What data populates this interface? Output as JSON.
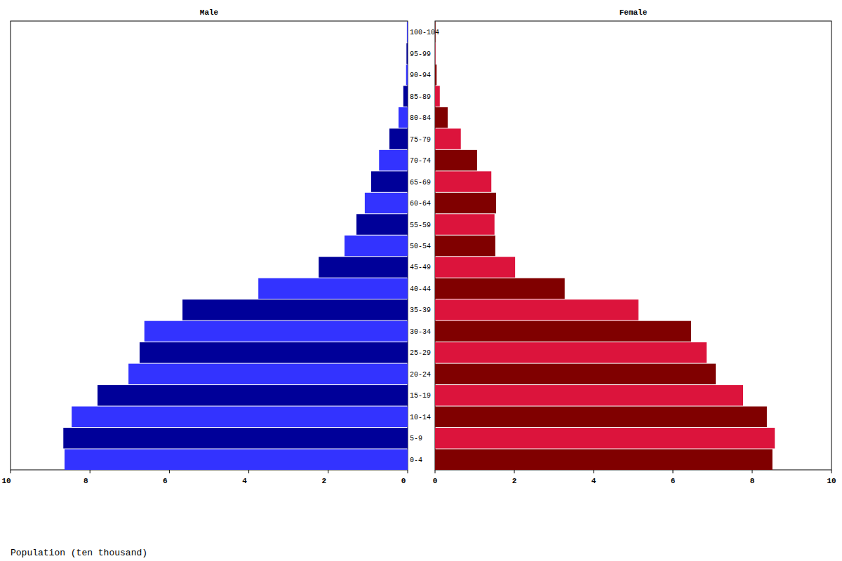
{
  "chart_data": {
    "type": "bar",
    "orientation": "horizontal",
    "x_label": "Population (ten thousand)",
    "categories": [
      "0-4",
      "5-9",
      "10-14",
      "15-19",
      "20-24",
      "25-29",
      "30-34",
      "35-39",
      "40-44",
      "45-49",
      "50-54",
      "55-59",
      "60-64",
      "65-69",
      "70-74",
      "75-79",
      "80-84",
      "85-89",
      "90-94",
      "95-99",
      "100-104"
    ],
    "series": [
      {
        "name": "Male",
        "colors": [
          "#3333ff",
          "#000099",
          "#3333ff",
          "#000099",
          "#3333ff",
          "#000099",
          "#3333ff",
          "#000099",
          "#3333ff",
          "#000099",
          "#3333ff",
          "#000099",
          "#3333ff",
          "#000099",
          "#3333ff",
          "#000099",
          "#3333ff",
          "#000099",
          "#3333ff",
          "#000099",
          "#3333ff"
        ],
        "values": [
          8.64,
          8.67,
          8.46,
          7.81,
          7.03,
          6.75,
          6.63,
          5.67,
          3.76,
          2.24,
          1.59,
          1.29,
          1.08,
          0.92,
          0.72,
          0.46,
          0.23,
          0.11,
          0.04,
          0.03,
          0.02
        ]
      },
      {
        "name": "Female",
        "colors": [
          "#800000",
          "#dc143c",
          "#800000",
          "#dc143c",
          "#800000",
          "#dc143c",
          "#800000",
          "#dc143c",
          "#800000",
          "#dc143c",
          "#800000",
          "#dc143c",
          "#800000",
          "#dc143c",
          "#800000",
          "#dc143c",
          "#800000",
          "#dc143c",
          "#800000",
          "#dc143c",
          "#800000"
        ],
        "values": [
          8.51,
          8.57,
          8.37,
          7.77,
          7.08,
          6.85,
          6.46,
          5.13,
          3.27,
          2.02,
          1.52,
          1.5,
          1.54,
          1.42,
          1.06,
          0.65,
          0.32,
          0.12,
          0.04,
          0.01,
          0.01
        ]
      }
    ],
    "xlim": [
      0,
      10
    ],
    "xticks": [
      0,
      2,
      4,
      6,
      8,
      10
    ],
    "grid": false
  }
}
